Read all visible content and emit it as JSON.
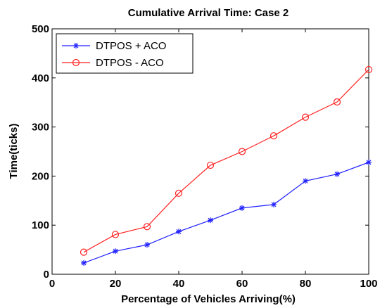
{
  "chart_data": {
    "type": "line",
    "title": "Cumulative Arrival Time: Case 2",
    "xlabel": "Percentage of Vehicles Arriving(%)",
    "ylabel": "Time(ticks)",
    "xlim": [
      0,
      100
    ],
    "ylim": [
      0,
      500
    ],
    "xticks": [
      0,
      20,
      40,
      60,
      80,
      100
    ],
    "yticks": [
      0,
      100,
      200,
      300,
      400,
      500
    ],
    "grid": false,
    "legend_position": "top-left",
    "x": [
      10,
      20,
      30,
      40,
      50,
      60,
      70,
      80,
      90,
      100
    ],
    "series": [
      {
        "name": "DTPOS + ACO",
        "color": "#2020ff",
        "marker": "star",
        "values": [
          23,
          47,
          60,
          87,
          110,
          135,
          142,
          190,
          204,
          228
        ]
      },
      {
        "name": "DTPOS - ACO",
        "color": "#ff2020",
        "marker": "circle",
        "values": [
          45,
          81,
          97,
          165,
          222,
          250,
          282,
          320,
          351,
          417
        ]
      }
    ]
  }
}
